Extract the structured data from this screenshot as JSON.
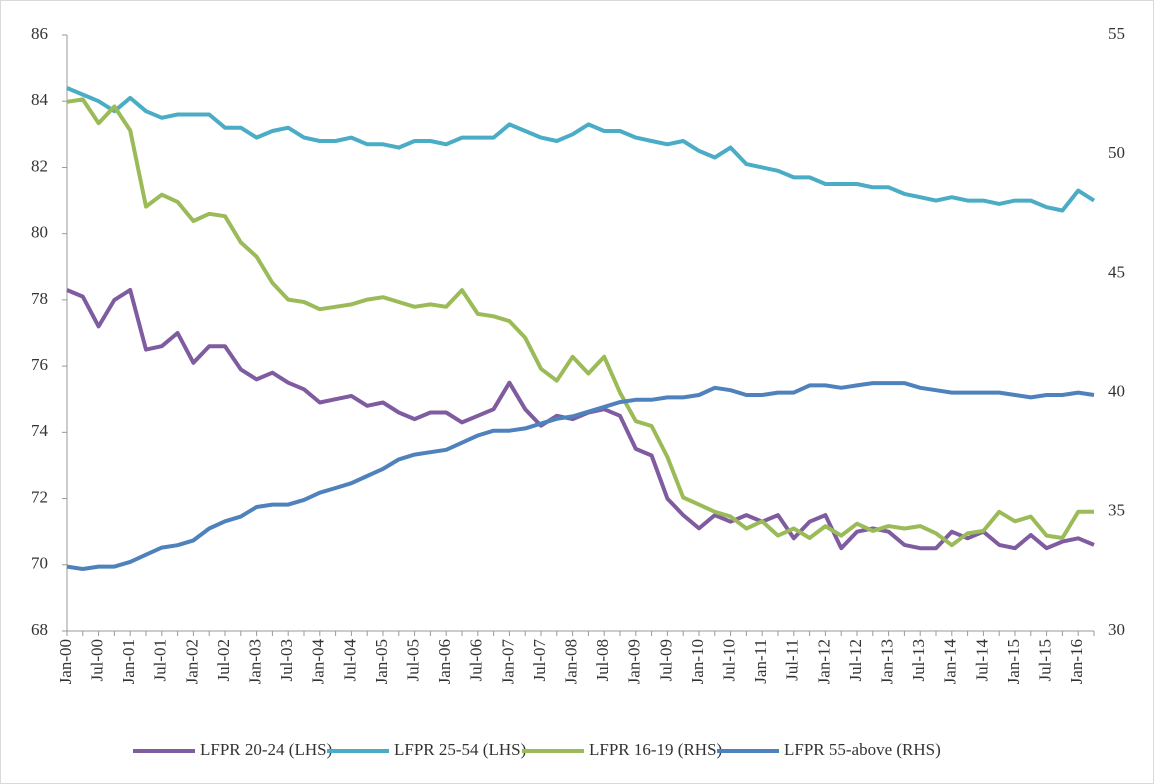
{
  "chart_data": {
    "type": "line",
    "categories": [
      "Jan-00",
      null,
      "Jul-00",
      null,
      "Jan-01",
      null,
      "Jul-01",
      null,
      "Jan-02",
      null,
      "Jul-02",
      null,
      "Jan-03",
      null,
      "Jul-03",
      null,
      "Jan-04",
      null,
      "Jul-04",
      null,
      "Jan-05",
      null,
      "Jul-05",
      null,
      "Jan-06",
      null,
      "Jul-06",
      null,
      "Jan-07",
      null,
      "Jul-07",
      null,
      "Jan-08",
      null,
      "Jul-08",
      null,
      "Jan-09",
      null,
      "Jul-09",
      null,
      "Jan-10",
      null,
      "Jul-10",
      null,
      "Jan-11",
      null,
      "Jul-11",
      null,
      "Jan-12",
      null,
      "Jul-12",
      null,
      "Jan-13",
      null,
      "Jul-13",
      null,
      "Jan-14",
      null,
      "Jul-14",
      null,
      "Jan-15",
      null,
      "Jul-15",
      null,
      "Jan-16",
      null
    ],
    "series": [
      {
        "name": "LFPR 20-24 (LHS)",
        "color": "#7f5ba0",
        "values": [
          78.3,
          78.1,
          77.2,
          78.0,
          78.3,
          76.5,
          76.6,
          77.0,
          76.1,
          76.6,
          76.6,
          75.9,
          75.6,
          75.8,
          75.5,
          75.3,
          74.9,
          75.0,
          75.1,
          74.8,
          74.9,
          74.6,
          74.4,
          74.6,
          74.6,
          74.3,
          74.5,
          74.7,
          75.5,
          74.7,
          74.2,
          74.5,
          74.4,
          74.6,
          74.7,
          74.5,
          73.5,
          73.3,
          72.0,
          71.5,
          71.1,
          71.5,
          71.3,
          71.5,
          71.3,
          71.5,
          70.8,
          71.3,
          71.5,
          70.5,
          71.0,
          71.1,
          71.0,
          70.6,
          70.5,
          70.5,
          71.0,
          70.8,
          71.0,
          70.6,
          70.5,
          70.9,
          70.5,
          70.7,
          70.8,
          70.6
        ]
      },
      {
        "name": "LFPR 25-54 (LHS)",
        "color": "#4bacc6",
        "values": [
          84.4,
          84.2,
          84.0,
          83.7,
          84.1,
          83.7,
          83.5,
          83.6,
          83.6,
          83.6,
          83.2,
          83.2,
          82.9,
          83.1,
          83.2,
          82.9,
          82.8,
          82.8,
          82.9,
          82.7,
          82.7,
          82.6,
          82.8,
          82.8,
          82.7,
          82.9,
          82.9,
          82.9,
          83.3,
          83.1,
          82.9,
          82.8,
          83.0,
          83.3,
          83.1,
          83.1,
          82.9,
          82.8,
          82.7,
          82.8,
          82.5,
          82.3,
          82.6,
          82.1,
          82.0,
          81.9,
          81.7,
          81.7,
          81.5,
          81.5,
          81.5,
          81.4,
          81.4,
          81.2,
          81.1,
          81.0,
          81.1,
          81.0,
          81.0,
          80.9,
          81.0,
          81.0,
          80.8,
          80.7,
          81.3,
          81.0
        ]
      },
      {
        "name": "LFPR 16-19 (RHS)",
        "color": "#9bbb59",
        "axis": "y2",
        "values": [
          52.2,
          52.3,
          51.3,
          52.0,
          51.0,
          47.8,
          48.3,
          48.0,
          47.2,
          47.5,
          47.4,
          46.3,
          45.7,
          44.6,
          43.9,
          43.8,
          43.5,
          43.6,
          43.7,
          43.9,
          44.0,
          43.8,
          43.6,
          43.7,
          43.6,
          44.3,
          43.3,
          43.2,
          43.0,
          42.3,
          41.0,
          40.5,
          41.5,
          40.8,
          41.5,
          40.0,
          38.8,
          38.6,
          37.3,
          35.6,
          35.3,
          35.0,
          34.8,
          34.3,
          34.6,
          34.0,
          34.3,
          33.9,
          34.4,
          34.0,
          34.5,
          34.2,
          34.4,
          34.3,
          34.4,
          34.1,
          33.6,
          34.1,
          34.2,
          35.0,
          34.6,
          34.8,
          34.0,
          33.9,
          35.0,
          35.0
        ]
      },
      {
        "name": "LFPR 55-above (RHS)",
        "color": "#4f81bd",
        "axis": "y2",
        "values": [
          32.7,
          32.6,
          32.7,
          32.7,
          32.9,
          33.2,
          33.5,
          33.6,
          33.8,
          34.3,
          34.6,
          34.8,
          35.2,
          35.3,
          35.3,
          35.5,
          35.8,
          36.0,
          36.2,
          36.5,
          36.8,
          37.2,
          37.4,
          37.5,
          37.6,
          37.9,
          38.2,
          38.4,
          38.4,
          38.5,
          38.7,
          38.9,
          39.0,
          39.2,
          39.4,
          39.6,
          39.7,
          39.7,
          39.8,
          39.8,
          39.9,
          40.2,
          40.1,
          39.9,
          39.9,
          40.0,
          40.0,
          40.3,
          40.3,
          40.2,
          40.3,
          40.4,
          40.4,
          40.4,
          40.2,
          40.1,
          40.0,
          40.0,
          40.0,
          40.0,
          39.9,
          39.8,
          39.9,
          39.9,
          40.0,
          39.9
        ]
      }
    ],
    "ylim": [
      68,
      86
    ],
    "yticks": [
      68,
      70,
      72,
      74,
      76,
      78,
      80,
      82,
      84,
      86
    ],
    "y2lim": [
      30,
      55
    ],
    "y2ticks": [
      30,
      35,
      40,
      45,
      50,
      55
    ],
    "grid": false,
    "legend": "bottom"
  }
}
